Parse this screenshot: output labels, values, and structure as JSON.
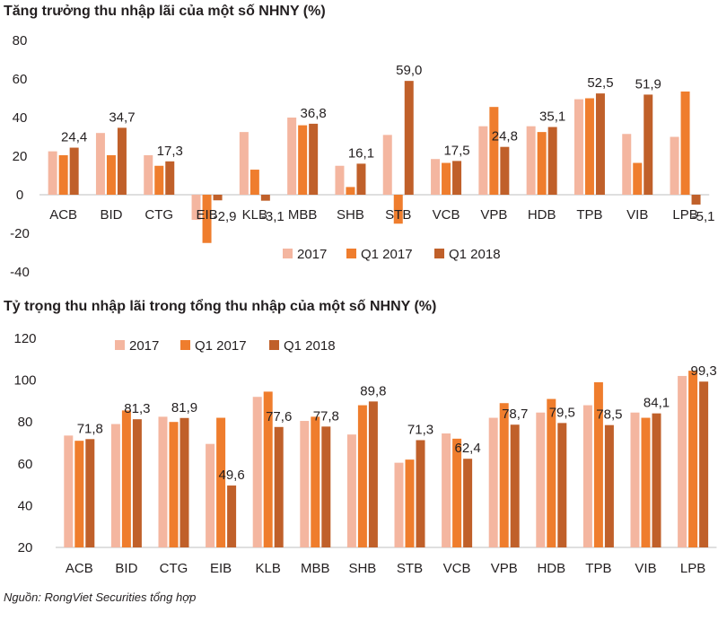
{
  "colors": {
    "2017": "#f4b6a0",
    "Q1 2017": "#ef7d2d",
    "Q1 2018": "#c0602a"
  },
  "chart_data": [
    {
      "type": "bar",
      "title": "Tăng trưởng thu nhập lãi của một số NHNY (%)",
      "categories": [
        "ACB",
        "BID",
        "CTG",
        "EIB",
        "KLB",
        "MBB",
        "SHB",
        "STB",
        "VCB",
        "VPB",
        "HDB",
        "TPB",
        "VIB",
        "LPB"
      ],
      "series": [
        {
          "name": "2017",
          "values": [
            22.5,
            32.0,
            20.5,
            -13.0,
            32.5,
            40.0,
            15.0,
            31.0,
            18.5,
            35.5,
            35.5,
            49.5,
            31.5,
            30.0
          ]
        },
        {
          "name": "Q1 2017",
          "values": [
            20.5,
            20.5,
            15.0,
            -25.0,
            13.0,
            36.0,
            4.0,
            -15.0,
            16.5,
            45.5,
            32.5,
            50.0,
            16.5,
            53.5
          ]
        },
        {
          "name": "Q1 2018",
          "values": [
            24.4,
            34.7,
            17.3,
            -2.9,
            -3.1,
            36.8,
            16.1,
            59.0,
            17.5,
            24.8,
            35.1,
            52.5,
            51.9,
            -5.1
          ]
        }
      ],
      "data_labels": [
        "24,4",
        "34,7",
        "17,3",
        "-2,9",
        "-3,1",
        "36,8",
        "16,1",
        "59,0",
        "17,5",
        "24,8",
        "35,1",
        "52,5",
        "51,9",
        "-5,1"
      ],
      "yticks": [
        "-40",
        "-20",
        "0",
        "20",
        "40",
        "60",
        "80"
      ],
      "ylim": [
        -40,
        80
      ],
      "legend": [
        "2017",
        "Q1 2017",
        "Q1 2018"
      ],
      "legend_position": "bottom",
      "grid": false
    },
    {
      "type": "bar",
      "title": "Tỷ trọng thu nhập lãi trong tổng thu nhập của một số NHNY (%)",
      "categories": [
        "ACB",
        "BID",
        "CTG",
        "EIB",
        "KLB",
        "MBB",
        "SHB",
        "STB",
        "VCB",
        "VPB",
        "HDB",
        "TPB",
        "VIB",
        "LPB"
      ],
      "series": [
        {
          "name": "2017",
          "values": [
            73.5,
            79.0,
            82.5,
            69.5,
            92.0,
            80.5,
            74.0,
            60.5,
            74.5,
            82.0,
            84.5,
            88.0,
            84.5,
            102.0
          ]
        },
        {
          "name": "Q1 2017",
          "values": [
            71.0,
            85.5,
            80.0,
            82.0,
            94.5,
            82.5,
            88.0,
            62.0,
            72.0,
            89.0,
            91.0,
            99.0,
            82.0,
            104.5
          ]
        },
        {
          "name": "Q1 2018",
          "values": [
            71.8,
            81.3,
            81.9,
            49.6,
            77.6,
            77.8,
            89.8,
            71.3,
            62.4,
            78.7,
            79.5,
            78.5,
            84.1,
            99.3
          ]
        }
      ],
      "data_labels": [
        "71,8",
        "81,3",
        "81,9",
        "49,6",
        "77,6",
        "77,8",
        "89,8",
        "71,3",
        "62,4",
        "78,7",
        "79,5",
        "78,5",
        "84,1",
        "99,3"
      ],
      "yticks": [
        "20",
        "40",
        "60",
        "80",
        "100",
        "120"
      ],
      "ylim": [
        20,
        120
      ],
      "legend": [
        "2017",
        "Q1 2017",
        "Q1 2018"
      ],
      "legend_position": "top",
      "grid": false
    }
  ],
  "source": "Nguồn: RongViet Securities tổng hợp"
}
